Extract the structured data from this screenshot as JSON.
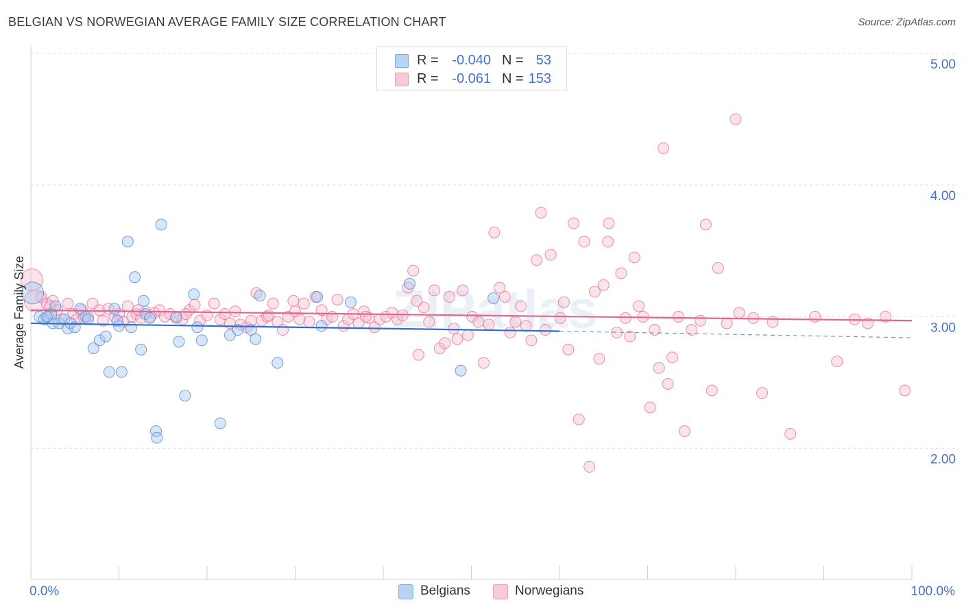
{
  "title": "BELGIAN VS NORWEGIAN AVERAGE FAMILY SIZE CORRELATION CHART",
  "source": "Source: ZipAtlas.com",
  "watermark": "ZIPatlas",
  "colors": {
    "belgians_fill": "#a9c8f2",
    "belgians_stroke": "#5b8fd6",
    "belgians_line": "#2d6fcc",
    "norwegians_fill": "#f7c0d0",
    "norwegians_stroke": "#e8799c",
    "norwegians_line": "#e0678f",
    "tick_label": "#4472c4",
    "grid": "#dcdcdc"
  },
  "legend_top": {
    "rows": [
      {
        "r_label": "R =",
        "r_value": "-0.040",
        "n_label": "N =",
        "n_value": "53"
      },
      {
        "r_label": "R =",
        "r_value": "-0.061",
        "n_label": "N =",
        "n_value": "153"
      }
    ]
  },
  "legend_bottom": {
    "items": [
      {
        "label": "Belgians"
      },
      {
        "label": "Norwegians"
      }
    ]
  },
  "chart_data": {
    "type": "scatter",
    "ylabel": "Average Family Size",
    "xlim": [
      0,
      100
    ],
    "ylim": [
      1.0,
      5.2
    ],
    "y_ticks": [
      2.0,
      3.0,
      4.0,
      5.0
    ],
    "y_tick_labels": [
      "2.00",
      "3.00",
      "4.00",
      "5.00"
    ],
    "x_tick_labels": [
      "0.0%",
      "100.0%"
    ],
    "grid": "horizontal dashed",
    "legend_position": "top-center",
    "series": [
      {
        "name": "Belgians",
        "r": -0.04,
        "n": 53,
        "trend": {
          "x": [
            0,
            60
          ],
          "y": [
            2.95,
            2.89
          ]
        },
        "trend_dashed": {
          "x": [
            60,
            100
          ],
          "y": [
            2.89,
            2.84
          ]
        },
        "points": [
          [
            0.2,
            3.18
          ],
          [
            1.0,
            3.0
          ],
          [
            1.5,
            2.98
          ],
          [
            2.0,
            3.0
          ],
          [
            2.3,
            3.02
          ],
          [
            2.5,
            2.95
          ],
          [
            2.8,
            3.08
          ],
          [
            3.2,
            2.95
          ],
          [
            3.8,
            2.98
          ],
          [
            4.2,
            2.91
          ],
          [
            4.5,
            2.95
          ],
          [
            5.0,
            2.92
          ],
          [
            5.6,
            3.06
          ],
          [
            6.2,
            3.0
          ],
          [
            6.5,
            2.98
          ],
          [
            7.1,
            2.76
          ],
          [
            7.8,
            2.82
          ],
          [
            8.5,
            2.85
          ],
          [
            8.9,
            2.58
          ],
          [
            9.5,
            3.06
          ],
          [
            10.0,
            2.93
          ],
          [
            10.3,
            2.58
          ],
          [
            11.0,
            3.57
          ],
          [
            11.4,
            2.92
          ],
          [
            11.8,
            3.3
          ],
          [
            12.5,
            2.75
          ],
          [
            12.8,
            3.12
          ],
          [
            13.0,
            3.02
          ],
          [
            13.5,
            2.99
          ],
          [
            14.2,
            2.13
          ],
          [
            14.3,
            2.08
          ],
          [
            14.8,
            3.7
          ],
          [
            16.5,
            3.0
          ],
          [
            16.8,
            2.81
          ],
          [
            17.5,
            2.4
          ],
          [
            18.5,
            3.17
          ],
          [
            18.9,
            2.92
          ],
          [
            19.4,
            2.82
          ],
          [
            21.5,
            2.19
          ],
          [
            22.6,
            2.86
          ],
          [
            23.5,
            2.9
          ],
          [
            25.0,
            2.9
          ],
          [
            25.5,
            2.83
          ],
          [
            26.0,
            3.16
          ],
          [
            28.0,
            2.65
          ],
          [
            32.5,
            3.15
          ],
          [
            36.3,
            3.11
          ],
          [
            43.0,
            3.25
          ],
          [
            48.8,
            2.59
          ],
          [
            52.5,
            3.14
          ],
          [
            1.8,
            3.0
          ],
          [
            9.8,
            2.97
          ],
          [
            33.0,
            2.93
          ]
        ]
      },
      {
        "name": "Norwegians",
        "r": -0.061,
        "n": 153,
        "trend": {
          "x": [
            0,
            100
          ],
          "y": [
            3.05,
            2.97
          ]
        },
        "points": [
          [
            0.1,
            3.28
          ],
          [
            0.5,
            3.12
          ],
          [
            1.2,
            3.15
          ],
          [
            1.8,
            3.1
          ],
          [
            2.5,
            3.12
          ],
          [
            3.0,
            3.05
          ],
          [
            3.5,
            2.98
          ],
          [
            4.2,
            3.1
          ],
          [
            4.8,
            3.02
          ],
          [
            5.2,
            2.98
          ],
          [
            5.8,
            3.05
          ],
          [
            6.5,
            3.0
          ],
          [
            7.0,
            3.1
          ],
          [
            7.8,
            3.05
          ],
          [
            8.2,
            2.97
          ],
          [
            8.8,
            3.06
          ],
          [
            9.5,
            3.0
          ],
          [
            10.0,
            3.02
          ],
          [
            10.5,
            2.96
          ],
          [
            11.0,
            3.08
          ],
          [
            11.5,
            3.0
          ],
          [
            12.0,
            3.02
          ],
          [
            12.5,
            2.99
          ],
          [
            13.0,
            3.04
          ],
          [
            13.6,
            3.0
          ],
          [
            14.0,
            3.03
          ],
          [
            14.6,
            3.05
          ],
          [
            15.2,
            3.0
          ],
          [
            15.8,
            3.02
          ],
          [
            16.5,
            2.99
          ],
          [
            17.2,
            2.98
          ],
          [
            18.0,
            3.05
          ],
          [
            18.6,
            3.09
          ],
          [
            19.2,
            2.97
          ],
          [
            20.0,
            3.01
          ],
          [
            20.8,
            3.1
          ],
          [
            21.5,
            2.98
          ],
          [
            22.0,
            3.02
          ],
          [
            22.6,
            2.95
          ],
          [
            23.2,
            3.04
          ],
          [
            23.8,
            2.94
          ],
          [
            24.5,
            2.92
          ],
          [
            25.0,
            2.97
          ],
          [
            25.6,
            3.18
          ],
          [
            26.2,
            2.97
          ],
          [
            26.8,
            3.0
          ],
          [
            27.5,
            3.1
          ],
          [
            28.0,
            2.96
          ],
          [
            28.6,
            2.9
          ],
          [
            29.2,
            3.0
          ],
          [
            29.8,
            3.12
          ],
          [
            30.5,
            2.98
          ],
          [
            31.0,
            3.1
          ],
          [
            31.6,
            2.96
          ],
          [
            32.3,
            3.15
          ],
          [
            33.0,
            3.05
          ],
          [
            33.6,
            2.98
          ],
          [
            34.2,
            3.0
          ],
          [
            34.8,
            3.13
          ],
          [
            35.5,
            2.93
          ],
          [
            36.0,
            2.98
          ],
          [
            36.6,
            3.02
          ],
          [
            37.2,
            2.95
          ],
          [
            37.8,
            3.04
          ],
          [
            38.4,
            2.99
          ],
          [
            39.0,
            2.92
          ],
          [
            39.6,
            2.98
          ],
          [
            40.3,
            3.0
          ],
          [
            41.0,
            3.03
          ],
          [
            41.6,
            2.98
          ],
          [
            42.2,
            3.01
          ],
          [
            42.8,
            3.22
          ],
          [
            43.4,
            3.35
          ],
          [
            44.0,
            2.71
          ],
          [
            44.6,
            3.07
          ],
          [
            45.2,
            2.96
          ],
          [
            45.8,
            3.2
          ],
          [
            46.4,
            2.76
          ],
          [
            47.0,
            2.8
          ],
          [
            47.5,
            3.15
          ],
          [
            48.0,
            2.91
          ],
          [
            48.4,
            2.83
          ],
          [
            49.0,
            3.2
          ],
          [
            49.6,
            2.86
          ],
          [
            50.1,
            3.0
          ],
          [
            50.8,
            2.96
          ],
          [
            51.4,
            2.65
          ],
          [
            52.0,
            2.94
          ],
          [
            52.6,
            3.64
          ],
          [
            53.2,
            3.22
          ],
          [
            53.8,
            3.15
          ],
          [
            54.4,
            2.88
          ],
          [
            55.0,
            2.96
          ],
          [
            55.6,
            3.08
          ],
          [
            56.2,
            2.93
          ],
          [
            56.8,
            2.82
          ],
          [
            57.4,
            3.43
          ],
          [
            57.9,
            3.79
          ],
          [
            58.4,
            2.9
          ],
          [
            59.0,
            3.47
          ],
          [
            60.1,
            2.99
          ],
          [
            60.5,
            3.11
          ],
          [
            61.0,
            2.75
          ],
          [
            61.6,
            3.71
          ],
          [
            62.2,
            2.22
          ],
          [
            62.8,
            3.57
          ],
          [
            63.4,
            1.86
          ],
          [
            64.0,
            3.19
          ],
          [
            64.5,
            2.68
          ],
          [
            65.0,
            3.24
          ],
          [
            65.5,
            3.57
          ],
          [
            65.6,
            3.71
          ],
          [
            66.5,
            2.88
          ],
          [
            67.0,
            3.33
          ],
          [
            67.5,
            2.99
          ],
          [
            68.0,
            2.85
          ],
          [
            68.5,
            3.45
          ],
          [
            69.0,
            3.08
          ],
          [
            69.5,
            3.0
          ],
          [
            70.3,
            2.31
          ],
          [
            70.8,
            2.9
          ],
          [
            71.3,
            2.61
          ],
          [
            71.8,
            4.28
          ],
          [
            72.3,
            2.49
          ],
          [
            72.8,
            2.69
          ],
          [
            73.5,
            3.0
          ],
          [
            74.2,
            2.13
          ],
          [
            75.0,
            2.9
          ],
          [
            76.0,
            2.97
          ],
          [
            76.6,
            3.7
          ],
          [
            77.3,
            2.44
          ],
          [
            78.0,
            3.37
          ],
          [
            79.0,
            2.95
          ],
          [
            80.0,
            4.5
          ],
          [
            80.4,
            3.03
          ],
          [
            82.0,
            2.99
          ],
          [
            83.0,
            2.42
          ],
          [
            84.2,
            2.96
          ],
          [
            86.2,
            2.11
          ],
          [
            89.0,
            3.0
          ],
          [
            91.5,
            2.66
          ],
          [
            93.5,
            2.98
          ],
          [
            95.0,
            2.95
          ],
          [
            97.0,
            3.0
          ],
          [
            99.2,
            2.44
          ],
          [
            2.2,
            3.08
          ],
          [
            6.0,
            2.99
          ],
          [
            12.2,
            3.05
          ],
          [
            17.6,
            3.02
          ],
          [
            27.0,
            3.01
          ],
          [
            30.0,
            3.04
          ],
          [
            38.0,
            3.0
          ],
          [
            43.8,
            3.12
          ]
        ]
      }
    ]
  }
}
